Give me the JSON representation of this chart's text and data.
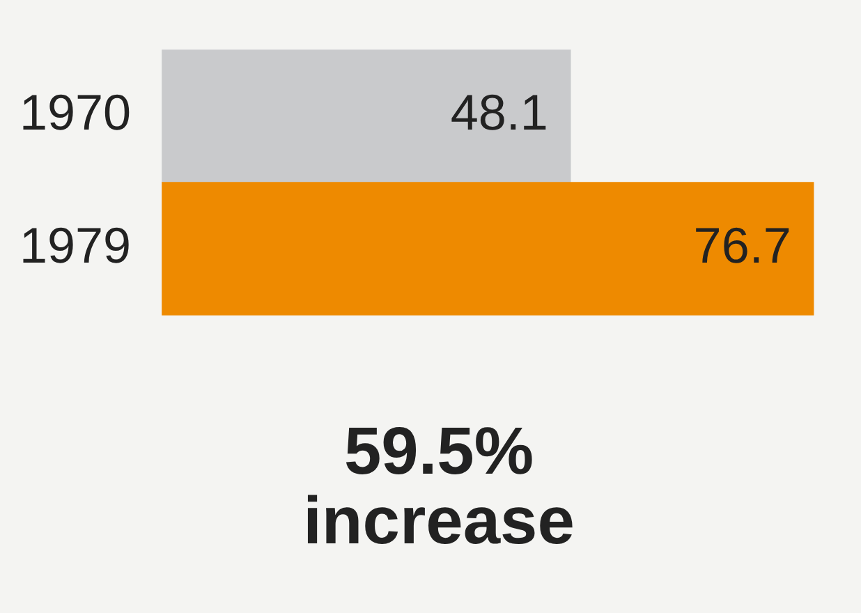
{
  "chart_data": {
    "type": "bar",
    "orientation": "horizontal",
    "categories": [
      "1970",
      "1979"
    ],
    "values": [
      48.1,
      76.7
    ],
    "colors": [
      "#c9cacc",
      "#ee8a00"
    ],
    "data_labels": true,
    "tick_labels": "y",
    "annotations": [
      "59.5% increase"
    ]
  }
}
